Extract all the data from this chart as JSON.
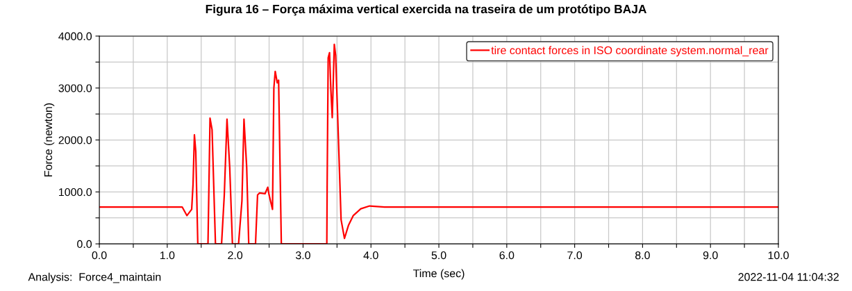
{
  "chart_data": {
    "type": "line",
    "title": "Figura 16 – Força máxima vertical exercida na traseira de um protótipo BAJA",
    "xlabel": "Time (sec)",
    "ylabel": "Force (newton)",
    "annotations": [
      "Analysis:  Force4_maintain",
      "2022-11-04 11:04:32"
    ],
    "series": [
      {
        "name": "tire contact forces in ISO coordinate system.normal_rear",
        "color": "#ff0000",
        "x": [
          0,
          1.22,
          1.29,
          1.36,
          1.38,
          1.4,
          1.42,
          1.45,
          1.6,
          1.63,
          1.66,
          1.71,
          1.8,
          1.84,
          1.88,
          1.92,
          1.96,
          2.05,
          2.1,
          2.13,
          2.17,
          2.2,
          2.3,
          2.33,
          2.36,
          2.44,
          2.48,
          2.5,
          2.55,
          2.57,
          2.59,
          2.62,
          2.64,
          2.68,
          3.35,
          3.355,
          3.37,
          3.39,
          3.41,
          3.43,
          3.45,
          3.46,
          3.48,
          3.52,
          3.56,
          3.61,
          3.67,
          3.74,
          3.85,
          3.98,
          4.2,
          10
        ],
        "values": [
          710,
          710,
          544,
          665,
          1150,
          2100,
          1780,
          0,
          0,
          2420,
          2200,
          0,
          0,
          940,
          2400,
          1470,
          0,
          0,
          830,
          2400,
          1470,
          0,
          0,
          940,
          980,
          965,
          1090,
          940,
          665,
          3000,
          3320,
          3100,
          3150,
          0,
          0,
          1150,
          3580,
          3680,
          2950,
          2430,
          3370,
          3840,
          3630,
          2050,
          465,
          105,
          360,
          545,
          675,
          730,
          710,
          710
        ]
      }
    ],
    "xlim": [
      0,
      10
    ],
    "xticks": [
      {
        "value": 0,
        "label": "0.0"
      },
      {
        "value": 0.5,
        "label": null
      },
      {
        "value": 1,
        "label": "1.0"
      },
      {
        "value": 1.5,
        "label": null
      },
      {
        "value": 2,
        "label": "2.0"
      },
      {
        "value": 2.5,
        "label": null
      },
      {
        "value": 3,
        "label": "3.0"
      },
      {
        "value": 3.5,
        "label": null
      },
      {
        "value": 4,
        "label": "4.0"
      },
      {
        "value": 4.5,
        "label": null
      },
      {
        "value": 5,
        "label": "5.0"
      },
      {
        "value": 5.5,
        "label": null
      },
      {
        "value": 6,
        "label": "6.0"
      },
      {
        "value": 6.5,
        "label": null
      },
      {
        "value": 7,
        "label": "7.0"
      },
      {
        "value": 7.5,
        "label": null
      },
      {
        "value": 8,
        "label": "8.0"
      },
      {
        "value": 8.5,
        "label": null
      },
      {
        "value": 9,
        "label": "9.0"
      },
      {
        "value": 9.5,
        "label": null
      },
      {
        "value": 10,
        "label": "10.0"
      }
    ],
    "ylim": [
      0,
      4000
    ],
    "yticks": [
      {
        "value": 0,
        "label": "0.0"
      },
      {
        "value": 500,
        "label": null
      },
      {
        "value": 1000,
        "label": "1000.0"
      },
      {
        "value": 1500,
        "label": null
      },
      {
        "value": 2000,
        "label": "2000.0"
      },
      {
        "value": 2500,
        "label": null
      },
      {
        "value": 3000,
        "label": "3000.0"
      },
      {
        "value": 3500,
        "label": null
      },
      {
        "value": 4000,
        "label": "4000.0"
      }
    ],
    "grid": true,
    "legend": "top right",
    "marker": "none",
    "line_style": "solid"
  }
}
